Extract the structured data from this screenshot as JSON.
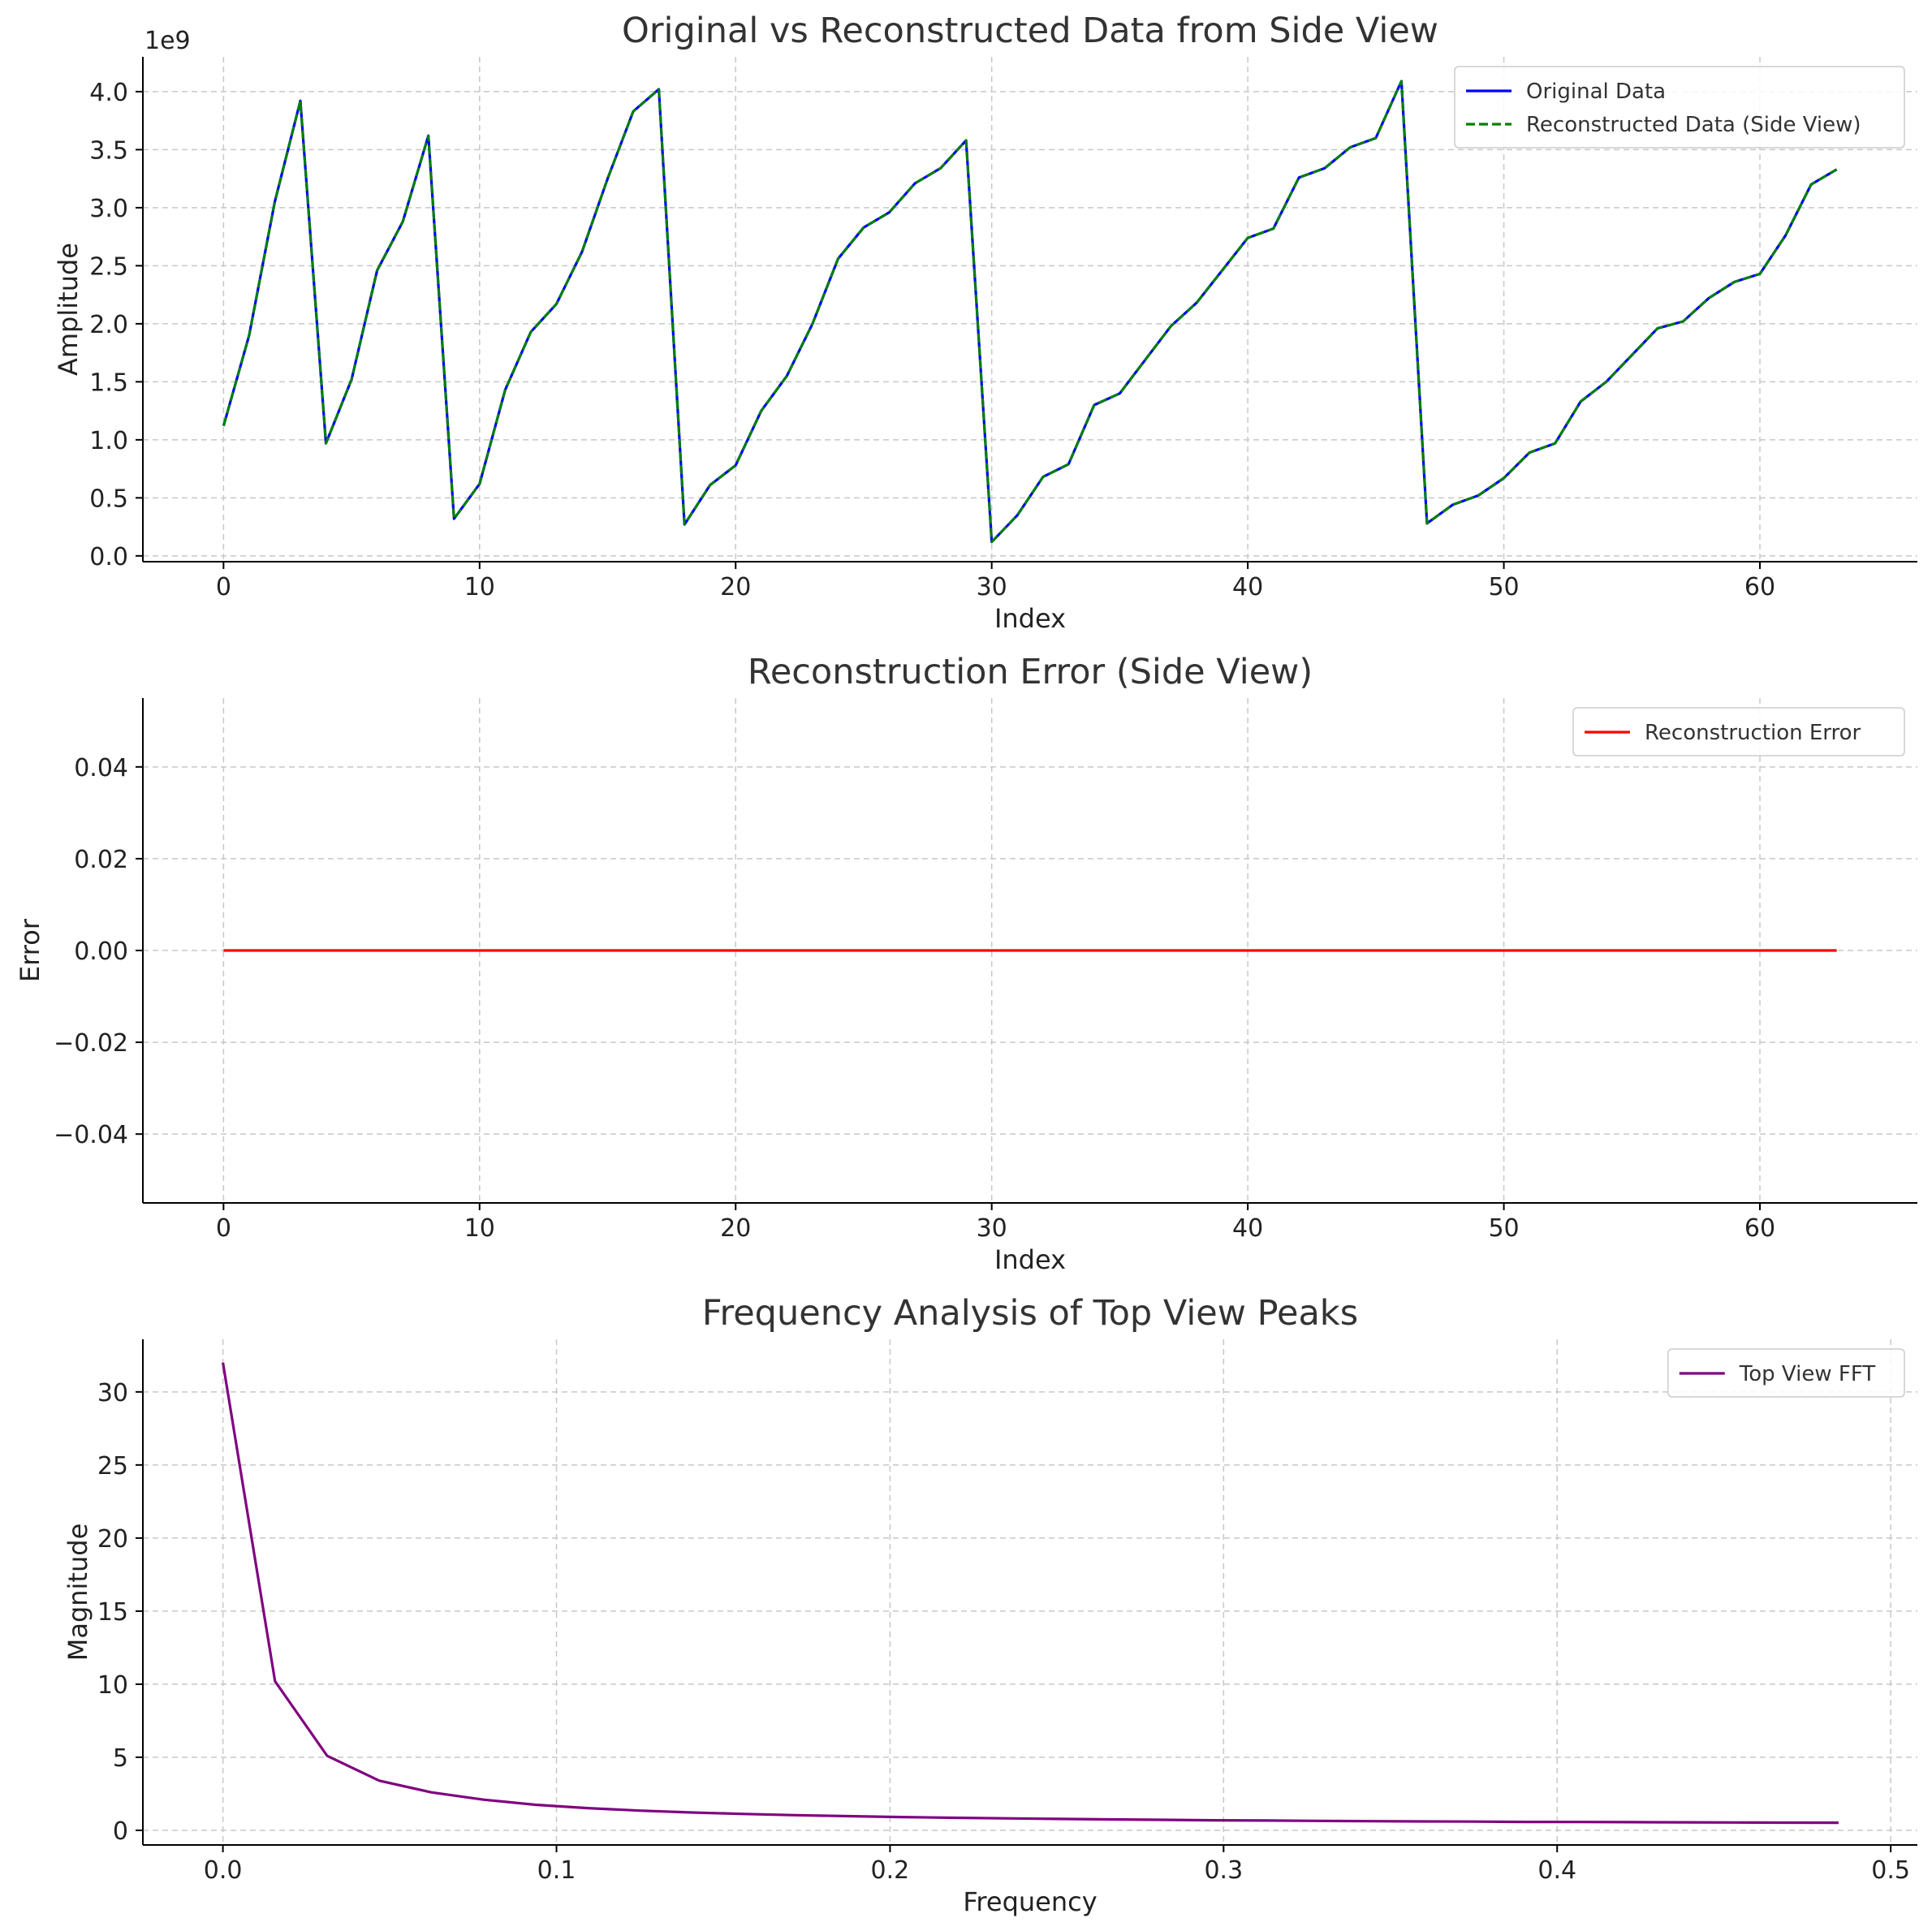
{
  "chart_data": [
    {
      "type": "line",
      "title": "Original vs Reconstructed Data from Side View",
      "xlabel": "Index",
      "ylabel": "Amplitude",
      "y_offset_label": "1e9",
      "xlim": [
        -3.15,
        66.15
      ],
      "ylim": [
        -0.05,
        4.3
      ],
      "xticks": [
        0,
        10,
        20,
        30,
        40,
        50,
        60
      ],
      "yticks": [
        0.0,
        0.5,
        1.0,
        1.5,
        2.0,
        2.5,
        3.0,
        3.5,
        4.0
      ],
      "ytick_labels": [
        "0.0",
        "0.5",
        "1.0",
        "1.5",
        "2.0",
        "2.5",
        "3.0",
        "3.5",
        "4.0"
      ],
      "grid": true,
      "legend_position": "top-right",
      "series": [
        {
          "name": "Original Data",
          "color": "#0000ff",
          "style": "solid",
          "values": [
            1.12,
            1.9,
            3.05,
            3.92,
            0.97,
            1.52,
            2.46,
            2.88,
            3.62,
            0.32,
            0.62,
            1.43,
            1.93,
            2.17,
            2.62,
            3.25,
            3.83,
            4.02,
            0.27,
            0.61,
            0.78,
            1.25,
            1.55,
            2.0,
            2.56,
            2.83,
            2.96,
            3.21,
            3.34,
            3.58,
            0.12,
            0.35,
            0.68,
            0.79,
            1.3,
            1.4,
            1.69,
            1.98,
            2.18,
            2.46,
            2.74,
            2.82,
            3.26,
            3.34,
            3.52,
            3.6,
            4.09,
            0.28,
            0.44,
            0.52,
            0.67,
            0.89,
            0.97,
            1.33,
            1.5,
            1.73,
            1.96,
            2.02,
            2.22,
            2.36,
            2.43,
            2.76,
            3.2,
            3.33
          ]
        },
        {
          "name": "Reconstructed Data (Side View)",
          "color": "#008000",
          "style": "dashed",
          "values": [
            1.12,
            1.9,
            3.05,
            3.92,
            0.97,
            1.52,
            2.46,
            2.88,
            3.62,
            0.32,
            0.62,
            1.43,
            1.93,
            2.17,
            2.62,
            3.25,
            3.83,
            4.02,
            0.27,
            0.61,
            0.78,
            1.25,
            1.55,
            2.0,
            2.56,
            2.83,
            2.96,
            3.21,
            3.34,
            3.58,
            0.12,
            0.35,
            0.68,
            0.79,
            1.3,
            1.4,
            1.69,
            1.98,
            2.18,
            2.46,
            2.74,
            2.82,
            3.26,
            3.34,
            3.52,
            3.6,
            4.09,
            0.28,
            0.44,
            0.52,
            0.67,
            0.89,
            0.97,
            1.33,
            1.5,
            1.73,
            1.96,
            2.02,
            2.22,
            2.36,
            2.43,
            2.76,
            3.2,
            3.33
          ]
        }
      ]
    },
    {
      "type": "line",
      "title": "Reconstruction Error (Side View)",
      "xlabel": "Index",
      "ylabel": "Error",
      "xlim": [
        -3.15,
        66.15
      ],
      "ylim": [
        -0.055,
        0.055
      ],
      "xticks": [
        0,
        10,
        20,
        30,
        40,
        50,
        60
      ],
      "yticks": [
        -0.04,
        -0.02,
        0.0,
        0.02,
        0.04
      ],
      "ytick_labels": [
        "−0.04",
        "−0.02",
        "0.00",
        "0.02",
        "0.04"
      ],
      "grid": true,
      "legend_position": "top-right",
      "series": [
        {
          "name": "Reconstruction Error",
          "color": "#ff0000",
          "style": "solid",
          "x_range": [
            0,
            63
          ],
          "value": 0.0
        }
      ]
    },
    {
      "type": "line",
      "title": "Frequency Analysis of Top View Peaks",
      "xlabel": "Frequency",
      "ylabel": "Magnitude",
      "xlim": [
        -0.024,
        0.508
      ],
      "ylim": [
        -1.0,
        33.6
      ],
      "xticks": [
        0.0,
        0.1,
        0.2,
        0.3,
        0.4,
        0.5
      ],
      "xtick_labels": [
        "0.0",
        "0.1",
        "0.2",
        "0.3",
        "0.4",
        "0.5"
      ],
      "yticks": [
        0,
        5,
        10,
        15,
        20,
        25,
        30
      ],
      "grid": true,
      "legend_position": "top-right",
      "series": [
        {
          "name": "Top View FFT",
          "color": "#800080",
          "style": "solid",
          "x": [
            0.0,
            0.015625,
            0.03125,
            0.046875,
            0.0625,
            0.078125,
            0.09375,
            0.109375,
            0.125,
            0.140625,
            0.15625,
            0.171875,
            0.1875,
            0.203125,
            0.21875,
            0.234375,
            0.25,
            0.265625,
            0.28125,
            0.296875,
            0.3125,
            0.328125,
            0.34375,
            0.359375,
            0.375,
            0.390625,
            0.40625,
            0.421875,
            0.4375,
            0.453125,
            0.46875,
            0.484375
          ],
          "values": [
            32.0,
            10.2,
            5.1,
            3.4,
            2.6,
            2.1,
            1.75,
            1.52,
            1.35,
            1.22,
            1.12,
            1.04,
            0.97,
            0.91,
            0.86,
            0.82,
            0.78,
            0.75,
            0.72,
            0.69,
            0.67,
            0.65,
            0.63,
            0.61,
            0.6,
            0.58,
            0.57,
            0.56,
            0.55,
            0.54,
            0.53,
            0.52
          ]
        }
      ]
    }
  ]
}
